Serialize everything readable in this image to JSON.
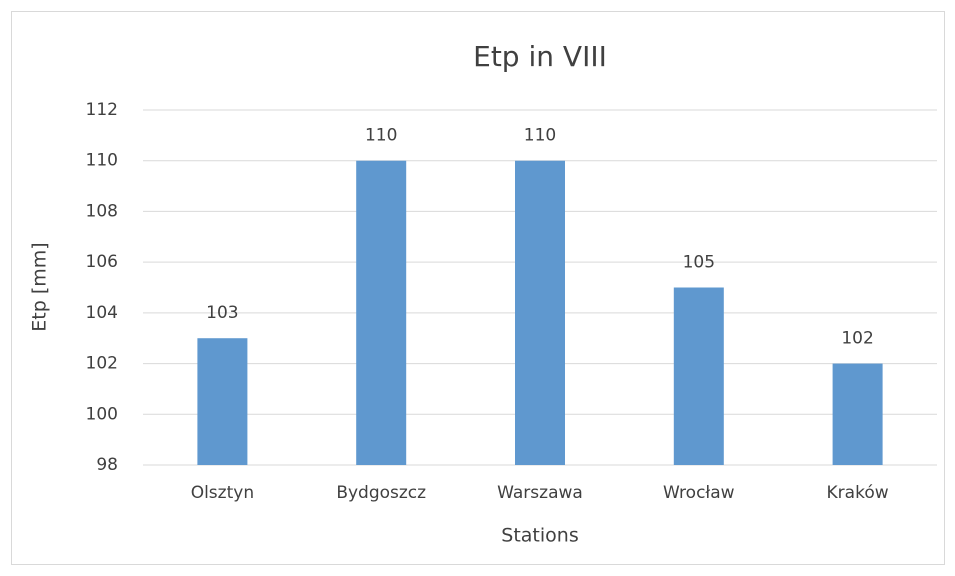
{
  "chart_data": {
    "type": "bar",
    "title": "Etp in VIII",
    "x_label": "Stations",
    "y_label": "Etp [mm]",
    "categories": [
      "Olsztyn",
      "Bydgoszcz",
      "Warszawa",
      "Wrocław",
      "Kraków"
    ],
    "values": [
      103,
      110,
      110,
      105,
      102
    ],
    "color": "#5f98cf",
    "ylim": [
      98,
      112
    ],
    "yticks": [
      98,
      100,
      102,
      104,
      106,
      108,
      110,
      112
    ],
    "grid": true,
    "data_labels": true
  }
}
